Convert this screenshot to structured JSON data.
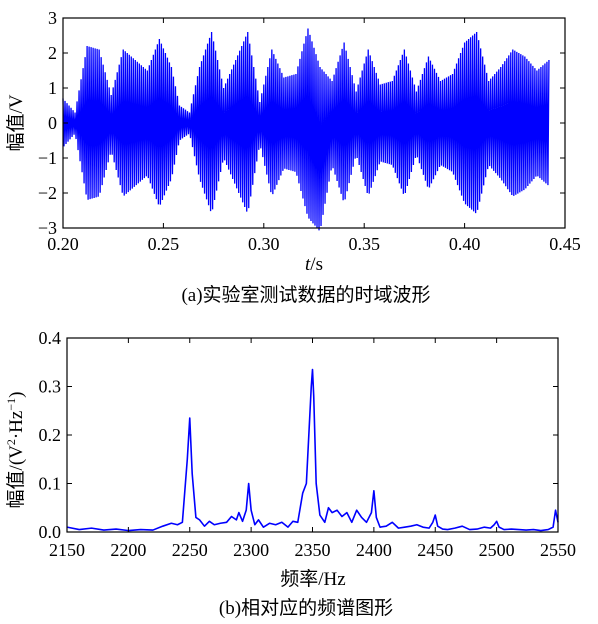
{
  "chart_data": [
    {
      "type": "line",
      "title": "",
      "caption": "(a)实验室测试数据的时域波形",
      "xlabel_italic": "t",
      "xlabel_unit": "/s",
      "ylabel": "幅值/V",
      "xlim": [
        0.2,
        0.45
      ],
      "ylim": [
        -3,
        3
      ],
      "xticks": [
        0.2,
        0.25,
        0.3,
        0.35,
        0.4,
        0.45
      ],
      "xtick_labels": [
        "0.20",
        "0.25",
        "0.30",
        "0.35",
        "0.40",
        "0.45"
      ],
      "yticks": [
        -3,
        -2,
        -1,
        0,
        1,
        2,
        3
      ],
      "ytick_labels": [
        "−3",
        "−2",
        "−1",
        "0",
        "1",
        "2",
        "3"
      ],
      "grid": false,
      "series_color": "#0000ff",
      "envelope": {
        "t": [
          0.2,
          0.206,
          0.212,
          0.218,
          0.224,
          0.23,
          0.236,
          0.242,
          0.248,
          0.254,
          0.258,
          0.263,
          0.268,
          0.274,
          0.28,
          0.286,
          0.292,
          0.298,
          0.304,
          0.31,
          0.316,
          0.322,
          0.328,
          0.334,
          0.34,
          0.346,
          0.352,
          0.358,
          0.364,
          0.37,
          0.376,
          0.382,
          0.388,
          0.394,
          0.4,
          0.406,
          0.412,
          0.418,
          0.424,
          0.43,
          0.436,
          0.442
        ],
        "upper": [
          0.7,
          0.3,
          2.2,
          2.1,
          0.8,
          2.1,
          1.8,
          1.5,
          2.4,
          1.6,
          0.5,
          0.3,
          1.6,
          2.6,
          1.0,
          1.8,
          2.6,
          0.6,
          2.1,
          1.3,
          1.4,
          2.7,
          1.6,
          1.2,
          2.3,
          0.9,
          2.1,
          1.1,
          1.2,
          2.1,
          0.9,
          1.9,
          1.2,
          1.4,
          2.3,
          2.6,
          1.2,
          1.6,
          2.1,
          1.9,
          1.5,
          1.8
        ],
        "lower": [
          -0.7,
          -0.3,
          -2.2,
          -2.1,
          -0.8,
          -2.1,
          -1.8,
          -1.5,
          -2.4,
          -1.6,
          -0.5,
          -0.3,
          -1.6,
          -2.6,
          -1.0,
          -1.8,
          -2.6,
          -0.6,
          -2.1,
          -1.3,
          -1.4,
          -2.7,
          -3.1,
          -1.2,
          -2.3,
          -0.9,
          -2.1,
          -1.1,
          -1.2,
          -2.1,
          -0.9,
          -1.9,
          -1.2,
          -1.4,
          -2.3,
          -2.6,
          -1.2,
          -1.6,
          -2.1,
          -1.9,
          -1.5,
          -1.8
        ]
      },
      "t_end": 0.442
    },
    {
      "type": "line",
      "title": "",
      "caption": "(b)相对应的频谱图形",
      "xlabel": "频率/Hz",
      "ylabel_prefix": "幅值/(V",
      "ylabel_sup1": "2",
      "ylabel_mid": "·Hz",
      "ylabel_sup2": "−1",
      "ylabel_suffix": ")",
      "xlim": [
        2150,
        2550
      ],
      "ylim": [
        0,
        0.4
      ],
      "xticks": [
        2150,
        2200,
        2250,
        2300,
        2350,
        2400,
        2450,
        2500,
        2550
      ],
      "xtick_labels": [
        "2150",
        "2200",
        "2250",
        "2300",
        "2350",
        "2400",
        "2450",
        "2500",
        "2550"
      ],
      "yticks": [
        0,
        0.1,
        0.2,
        0.3,
        0.4
      ],
      "ytick_labels": [
        "0.0",
        "0.1",
        "0.2",
        "0.3",
        "0.4"
      ],
      "grid": false,
      "series_color": "#0000ff",
      "x": [
        2150,
        2160,
        2170,
        2180,
        2190,
        2200,
        2210,
        2220,
        2228,
        2235,
        2240,
        2244,
        2248,
        2250,
        2252,
        2255,
        2258,
        2262,
        2266,
        2270,
        2275,
        2280,
        2284,
        2288,
        2290,
        2293,
        2296,
        2298,
        2300,
        2303,
        2306,
        2310,
        2315,
        2320,
        2325,
        2330,
        2334,
        2338,
        2342,
        2345,
        2347,
        2349,
        2350,
        2351,
        2353,
        2356,
        2360,
        2363,
        2366,
        2370,
        2374,
        2378,
        2382,
        2386,
        2390,
        2394,
        2398,
        2400,
        2402,
        2405,
        2410,
        2415,
        2420,
        2425,
        2430,
        2435,
        2440,
        2445,
        2448,
        2450,
        2452,
        2456,
        2460,
        2466,
        2472,
        2478,
        2484,
        2490,
        2495,
        2498,
        2500,
        2502,
        2506,
        2512,
        2518,
        2524,
        2530,
        2536,
        2542,
        2546,
        2548,
        2550
      ],
      "y": [
        0.01,
        0.005,
        0.008,
        0.004,
        0.006,
        0.003,
        0.005,
        0.004,
        0.012,
        0.018,
        0.015,
        0.02,
        0.15,
        0.235,
        0.12,
        0.03,
        0.025,
        0.012,
        0.022,
        0.015,
        0.018,
        0.02,
        0.032,
        0.025,
        0.04,
        0.022,
        0.045,
        0.1,
        0.045,
        0.015,
        0.025,
        0.01,
        0.018,
        0.015,
        0.02,
        0.01,
        0.022,
        0.02,
        0.08,
        0.1,
        0.2,
        0.3,
        0.335,
        0.28,
        0.1,
        0.035,
        0.02,
        0.05,
        0.04,
        0.045,
        0.032,
        0.04,
        0.02,
        0.045,
        0.03,
        0.02,
        0.04,
        0.085,
        0.03,
        0.01,
        0.012,
        0.02,
        0.008,
        0.01,
        0.012,
        0.015,
        0.01,
        0.008,
        0.02,
        0.035,
        0.012,
        0.006,
        0.005,
        0.008,
        0.012,
        0.005,
        0.006,
        0.01,
        0.008,
        0.015,
        0.022,
        0.01,
        0.005,
        0.006,
        0.005,
        0.004,
        0.005,
        0.003,
        0.005,
        0.01,
        0.045,
        0.02
      ]
    }
  ]
}
